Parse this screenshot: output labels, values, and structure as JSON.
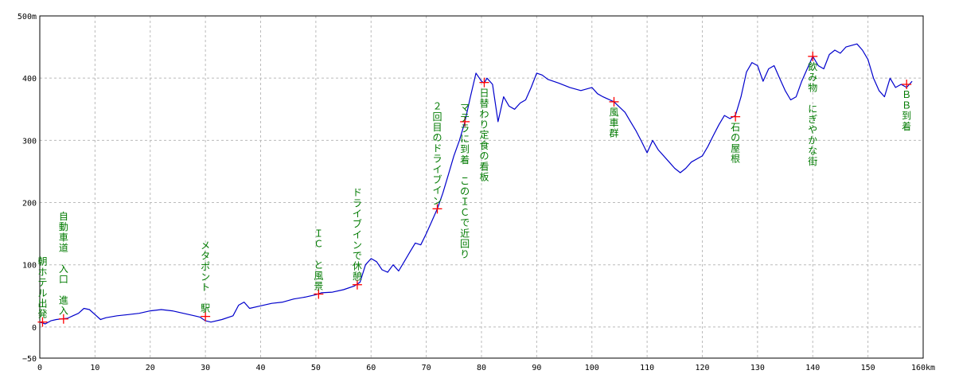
{
  "chart_data": {
    "type": "line",
    "title": "",
    "xlabel": "",
    "ylabel": "",
    "xlim": [
      0,
      160
    ],
    "ylim": [
      -50,
      500
    ],
    "x_unit": "km",
    "y_unit": "m",
    "x_ticks": [
      "0",
      "10",
      "20",
      "30",
      "40",
      "50",
      "60",
      "70",
      "80",
      "90",
      "100",
      "110",
      "120",
      "130",
      "140",
      "150",
      "160km"
    ],
    "y_ticks": [
      "500m",
      "400",
      "300",
      "200",
      "100",
      "0",
      "−50"
    ],
    "grid": true,
    "colors": {
      "line": "#0000cc",
      "marker": "#ff0000",
      "annotation": "#008000",
      "grid": "#bbbbbb",
      "axis": "#000000"
    },
    "series": [
      {
        "points": [
          [
            0,
            8
          ],
          [
            1,
            5
          ],
          [
            2,
            10
          ],
          [
            3,
            12
          ],
          [
            4,
            13
          ],
          [
            5,
            14
          ],
          [
            6,
            18
          ],
          [
            7,
            22
          ],
          [
            8,
            30
          ],
          [
            9,
            28
          ],
          [
            10,
            20
          ],
          [
            11,
            12
          ],
          [
            12,
            15
          ],
          [
            14,
            18
          ],
          [
            16,
            20
          ],
          [
            18,
            22
          ],
          [
            20,
            26
          ],
          [
            22,
            28
          ],
          [
            24,
            26
          ],
          [
            26,
            22
          ],
          [
            28,
            18
          ],
          [
            29,
            16
          ],
          [
            30,
            10
          ],
          [
            31,
            8
          ],
          [
            33,
            12
          ],
          [
            35,
            18
          ],
          [
            36,
            35
          ],
          [
            37,
            40
          ],
          [
            38,
            30
          ],
          [
            40,
            34
          ],
          [
            42,
            38
          ],
          [
            44,
            40
          ],
          [
            46,
            45
          ],
          [
            48,
            48
          ],
          [
            50,
            52
          ],
          [
            51,
            55
          ],
          [
            53,
            56
          ],
          [
            55,
            60
          ],
          [
            57,
            66
          ],
          [
            58,
            72
          ],
          [
            59,
            100
          ],
          [
            60,
            110
          ],
          [
            61,
            105
          ],
          [
            62,
            92
          ],
          [
            63,
            88
          ],
          [
            64,
            100
          ],
          [
            65,
            90
          ],
          [
            66,
            105
          ],
          [
            67,
            120
          ],
          [
            68,
            135
          ],
          [
            69,
            132
          ],
          [
            70,
            150
          ],
          [
            71,
            170
          ],
          [
            72,
            190
          ],
          [
            73,
            215
          ],
          [
            74,
            245
          ],
          [
            75,
            275
          ],
          [
            76,
            300
          ],
          [
            77,
            330
          ],
          [
            78,
            370
          ],
          [
            79,
            408
          ],
          [
            80,
            395
          ],
          [
            80.5,
            392
          ],
          [
            81,
            400
          ],
          [
            82,
            390
          ],
          [
            83,
            330
          ],
          [
            84,
            370
          ],
          [
            85,
            355
          ],
          [
            86,
            350
          ],
          [
            87,
            360
          ],
          [
            88,
            365
          ],
          [
            89,
            385
          ],
          [
            90,
            408
          ],
          [
            91,
            405
          ],
          [
            92,
            398
          ],
          [
            94,
            392
          ],
          [
            96,
            385
          ],
          [
            98,
            380
          ],
          [
            100,
            385
          ],
          [
            101,
            375
          ],
          [
            102,
            370
          ],
          [
            104,
            362
          ],
          [
            106,
            345
          ],
          [
            107,
            330
          ],
          [
            108,
            315
          ],
          [
            109,
            298
          ],
          [
            110,
            280
          ],
          [
            111,
            300
          ],
          [
            112,
            285
          ],
          [
            114,
            265
          ],
          [
            115,
            255
          ],
          [
            116,
            248
          ],
          [
            117,
            255
          ],
          [
            118,
            265
          ],
          [
            120,
            275
          ],
          [
            121,
            290
          ],
          [
            122,
            308
          ],
          [
            123,
            325
          ],
          [
            124,
            340
          ],
          [
            125,
            335
          ],
          [
            126,
            340
          ],
          [
            127,
            370
          ],
          [
            128,
            410
          ],
          [
            129,
            425
          ],
          [
            130,
            420
          ],
          [
            131,
            395
          ],
          [
            132,
            415
          ],
          [
            133,
            420
          ],
          [
            134,
            400
          ],
          [
            135,
            380
          ],
          [
            136,
            365
          ],
          [
            137,
            370
          ],
          [
            138,
            395
          ],
          [
            139,
            415
          ],
          [
            140,
            435
          ],
          [
            141,
            420
          ],
          [
            142,
            415
          ],
          [
            143,
            438
          ],
          [
            144,
            445
          ],
          [
            145,
            440
          ],
          [
            146,
            450
          ],
          [
            148,
            455
          ],
          [
            149,
            445
          ],
          [
            150,
            430
          ],
          [
            151,
            400
          ],
          [
            152,
            380
          ],
          [
            153,
            370
          ],
          [
            154,
            400
          ],
          [
            155,
            385
          ],
          [
            156,
            390
          ],
          [
            157,
            385
          ],
          [
            158,
            395
          ]
        ]
      }
    ],
    "markers": [
      {
        "x": 0.5,
        "y": 8,
        "lines": [
          "朝",
          "ホ",
          "テ",
          "ル",
          "出",
          "発"
        ],
        "side": "above",
        "dx": 0
      },
      {
        "x": 4.3,
        "y": 13,
        "lines": [
          "自",
          "動",
          "車",
          "道",
          "",
          "入",
          "口",
          "",
          "進",
          "入"
        ],
        "side": "above",
        "dx": 0
      },
      {
        "x": 30,
        "y": 17,
        "lines": [
          "メ",
          "タ",
          "ポ",
          "ン",
          "ト",
          "",
          "駅"
        ],
        "side": "above",
        "dx": 0
      },
      {
        "x": 50.5,
        "y": 53,
        "lines": [
          "Ｉ",
          "Ｃ",
          "",
          "と",
          "風",
          "景"
        ],
        "side": "above",
        "dx": 0
      },
      {
        "x": 57.5,
        "y": 68,
        "lines": [
          "ド",
          "ラ",
          "イ",
          "ブ",
          "イ",
          "ン",
          "で",
          "休",
          "憩"
        ],
        "side": "above",
        "dx": 0
      },
      {
        "x": 72,
        "y": 190,
        "lines": [
          "２",
          "回",
          "目",
          "の",
          "ド",
          "ラ",
          "イ",
          "ブ",
          "イ",
          "ン"
        ],
        "side": "above",
        "dx": 0
      },
      {
        "x": 77,
        "y": 330,
        "lines": [
          "マ",
          "テ",
          "ラ",
          "に",
          "到",
          "着",
          "",
          "こ",
          "の",
          "Ｉ",
          "Ｃ",
          "で",
          "近",
          "回",
          "り"
        ],
        "side": "below",
        "dx": 0
      },
      {
        "x": 80.5,
        "y": 393,
        "lines": [
          "日",
          "替",
          "わ",
          "り",
          "定",
          "食",
          "の",
          "看",
          "板"
        ],
        "side": "below",
        "dx": 0
      },
      {
        "x": 104,
        "y": 362,
        "lines": [
          "風",
          "車",
          "群"
        ],
        "side": "below",
        "dx": 0
      },
      {
        "x": 126,
        "y": 338,
        "lines": [
          "石",
          "の",
          "屋",
          "根"
        ],
        "side": "below",
        "dx": 0
      },
      {
        "x": 140,
        "y": 435,
        "lines": [
          "飲",
          "み",
          "物",
          "",
          "に",
          "ぎ",
          "や",
          "か",
          "な",
          "街"
        ],
        "side": "below",
        "dx": 0
      },
      {
        "x": 157,
        "y": 390,
        "lines": [
          "Ｂ",
          "Ｂ",
          "到",
          "着"
        ],
        "side": "below",
        "dx": 0
      }
    ]
  }
}
